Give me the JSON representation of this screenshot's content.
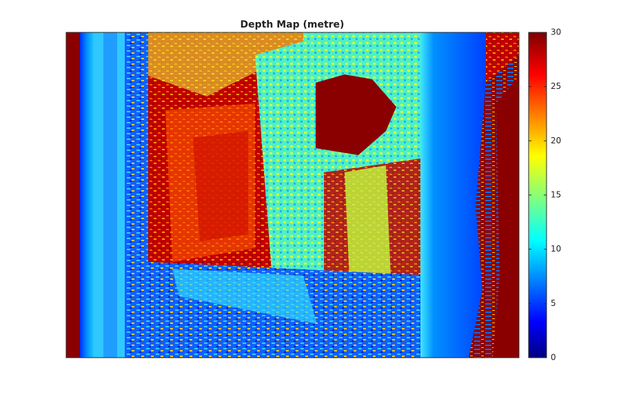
{
  "chart_data": {
    "type": "image",
    "title": "Depth Map (metre)",
    "colorbar": {
      "clim": [
        0,
        30
      ],
      "ticks": [
        0,
        5,
        10,
        15,
        20,
        25,
        30
      ],
      "colormap": "jet"
    }
  }
}
